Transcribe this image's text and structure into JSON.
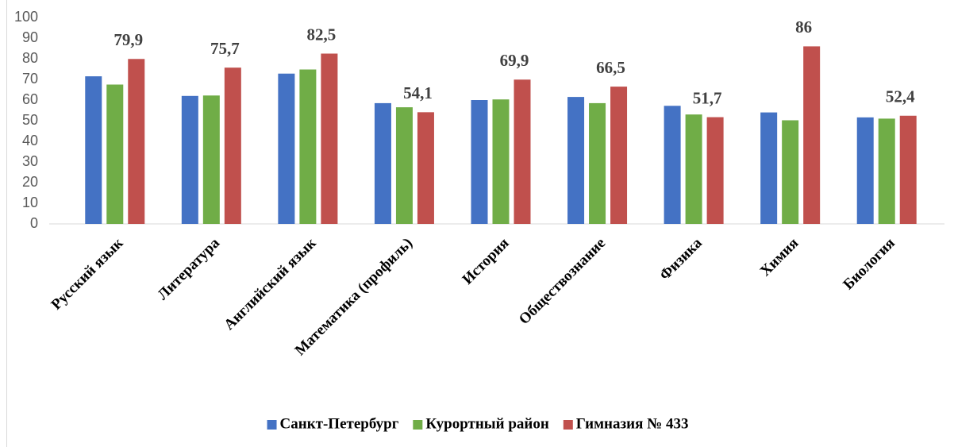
{
  "chart_data": {
    "type": "bar",
    "categories": [
      "Русский язык",
      "Литература",
      "Английский язык",
      "Математика (профиль)",
      "История",
      "Обществознание",
      "Физика",
      "Химия",
      "Биология"
    ],
    "series": [
      {
        "name": "Санкт-Петербург",
        "color": "#4472c4",
        "values": [
          71.5,
          62,
          72.8,
          58.5,
          60,
          61.5,
          57.2,
          54,
          51.6
        ]
      },
      {
        "name": "Курортный район",
        "color": "#70ad47",
        "values": [
          67.5,
          62.2,
          74.8,
          56.5,
          60.3,
          58.5,
          53,
          50.2,
          51
        ]
      },
      {
        "name": "Гимназия № 433",
        "color": "#c0504d",
        "values": [
          79.9,
          75.7,
          82.5,
          54.1,
          69.9,
          66.5,
          51.7,
          86,
          52.4
        ],
        "value_labels": [
          "79,9",
          "75,7",
          "82,5",
          "54,1",
          "69,9",
          "66,5",
          "51,7",
          "86",
          "52,4"
        ]
      }
    ],
    "ylim": [
      0,
      100
    ],
    "yticks": [
      0,
      10,
      20,
      30,
      40,
      50,
      60,
      70,
      80,
      90,
      100
    ],
    "grid": false,
    "legend": "bottom"
  }
}
